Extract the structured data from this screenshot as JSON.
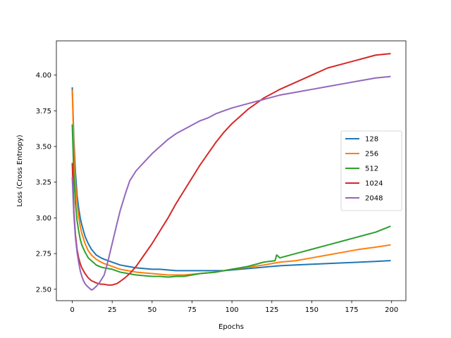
{
  "chart_data": {
    "type": "line",
    "title": "",
    "xlabel": "Epochs",
    "ylabel": "Loss (Cross Entropy)",
    "xlim": [
      -9.95,
      208.95
    ],
    "ylim": [
      2.42,
      4.24
    ],
    "xticks": [
      0,
      25,
      50,
      75,
      100,
      125,
      150,
      175,
      200
    ],
    "yticks": [
      2.5,
      2.75,
      3.0,
      3.25,
      3.5,
      3.75,
      4.0
    ],
    "xtick_labels": [
      "0",
      "25",
      "50",
      "75",
      "100",
      "125",
      "150",
      "175",
      "200"
    ],
    "ytick_labels": [
      "2.50",
      "2.75",
      "3.00",
      "3.25",
      "3.50",
      "3.75",
      "4.00"
    ],
    "grid": false,
    "legend_position": "center-right",
    "series": [
      {
        "name": "128",
        "color": "#1f77b4",
        "x": [
          0,
          1,
          2,
          3,
          4,
          5,
          6,
          8,
          10,
          12,
          15,
          18,
          20,
          25,
          30,
          35,
          40,
          45,
          50,
          55,
          60,
          65,
          70,
          75,
          80,
          85,
          90,
          95,
          100,
          105,
          110,
          115,
          120,
          125,
          130,
          140,
          150,
          160,
          170,
          180,
          190,
          199
        ],
        "y": [
          3.91,
          3.55,
          3.32,
          3.16,
          3.07,
          3.0,
          2.95,
          2.87,
          2.82,
          2.78,
          2.74,
          2.72,
          2.71,
          2.69,
          2.67,
          2.66,
          2.65,
          2.645,
          2.64,
          2.64,
          2.635,
          2.63,
          2.63,
          2.63,
          2.63,
          2.63,
          2.63,
          2.63,
          2.635,
          2.64,
          2.645,
          2.65,
          2.655,
          2.66,
          2.665,
          2.67,
          2.675,
          2.68,
          2.685,
          2.69,
          2.695,
          2.7
        ]
      },
      {
        "name": "256",
        "color": "#ff7f0e",
        "x": [
          0,
          1,
          2,
          3,
          4,
          5,
          6,
          8,
          10,
          12,
          15,
          18,
          20,
          25,
          30,
          35,
          40,
          45,
          50,
          55,
          60,
          65,
          70,
          75,
          80,
          85,
          90,
          95,
          100,
          110,
          120,
          130,
          140,
          150,
          160,
          170,
          180,
          190,
          199
        ],
        "y": [
          3.89,
          3.48,
          3.24,
          3.1,
          3.01,
          2.94,
          2.89,
          2.82,
          2.77,
          2.74,
          2.71,
          2.69,
          2.68,
          2.66,
          2.64,
          2.63,
          2.62,
          2.615,
          2.61,
          2.605,
          2.6,
          2.6,
          2.6,
          2.605,
          2.61,
          2.615,
          2.62,
          2.63,
          2.64,
          2.655,
          2.67,
          2.69,
          2.7,
          2.72,
          2.74,
          2.76,
          2.78,
          2.795,
          2.81
        ]
      },
      {
        "name": "512",
        "color": "#2ca02c",
        "x": [
          0,
          1,
          2,
          3,
          4,
          5,
          6,
          8,
          10,
          12,
          15,
          18,
          20,
          25,
          30,
          35,
          40,
          45,
          50,
          55,
          60,
          65,
          70,
          75,
          80,
          85,
          90,
          95,
          100,
          110,
          120,
          127,
          128,
          130,
          140,
          150,
          160,
          170,
          180,
          190,
          199
        ],
        "y": [
          3.65,
          3.3,
          3.1,
          2.98,
          2.91,
          2.85,
          2.81,
          2.76,
          2.72,
          2.7,
          2.67,
          2.655,
          2.65,
          2.64,
          2.62,
          2.61,
          2.6,
          2.595,
          2.59,
          2.59,
          2.585,
          2.59,
          2.59,
          2.6,
          2.61,
          2.615,
          2.62,
          2.63,
          2.64,
          2.66,
          2.69,
          2.7,
          2.74,
          2.72,
          2.75,
          2.78,
          2.81,
          2.84,
          2.87,
          2.9,
          2.94
        ]
      },
      {
        "name": "1024",
        "color": "#d62728",
        "x": [
          0,
          1,
          2,
          3,
          4,
          5,
          6,
          8,
          10,
          12,
          15,
          18,
          20,
          22,
          25,
          28,
          30,
          33,
          36,
          40,
          45,
          50,
          55,
          60,
          65,
          70,
          75,
          80,
          85,
          90,
          95,
          100,
          105,
          110,
          115,
          120,
          130,
          140,
          150,
          160,
          170,
          180,
          190,
          199
        ],
        "y": [
          3.38,
          3.05,
          2.88,
          2.78,
          2.72,
          2.68,
          2.65,
          2.61,
          2.58,
          2.56,
          2.545,
          2.535,
          2.535,
          2.53,
          2.53,
          2.54,
          2.555,
          2.58,
          2.61,
          2.66,
          2.74,
          2.82,
          2.91,
          3.0,
          3.1,
          3.19,
          3.28,
          3.37,
          3.45,
          3.53,
          3.6,
          3.66,
          3.71,
          3.76,
          3.8,
          3.84,
          3.9,
          3.95,
          4.0,
          4.05,
          4.08,
          4.11,
          4.14,
          4.15
        ]
      },
      {
        "name": "2048",
        "color": "#9467bd",
        "x": [
          0,
          1,
          2,
          3,
          4,
          5,
          6,
          7,
          8,
          9,
          10,
          11,
          12,
          13,
          14,
          15,
          17,
          20,
          22,
          25,
          28,
          30,
          33,
          36,
          40,
          45,
          50,
          55,
          60,
          65,
          70,
          75,
          80,
          85,
          90,
          95,
          100,
          110,
          120,
          130,
          140,
          150,
          160,
          170,
          180,
          190,
          199
        ],
        "y": [
          3.28,
          3.02,
          2.86,
          2.76,
          2.69,
          2.63,
          2.59,
          2.56,
          2.54,
          2.525,
          2.515,
          2.505,
          2.495,
          2.5,
          2.51,
          2.52,
          2.545,
          2.6,
          2.68,
          2.82,
          2.96,
          3.05,
          3.16,
          3.26,
          3.33,
          3.39,
          3.45,
          3.5,
          3.55,
          3.59,
          3.62,
          3.65,
          3.68,
          3.7,
          3.73,
          3.75,
          3.77,
          3.8,
          3.83,
          3.86,
          3.88,
          3.9,
          3.92,
          3.94,
          3.96,
          3.98,
          3.99
        ]
      }
    ]
  }
}
